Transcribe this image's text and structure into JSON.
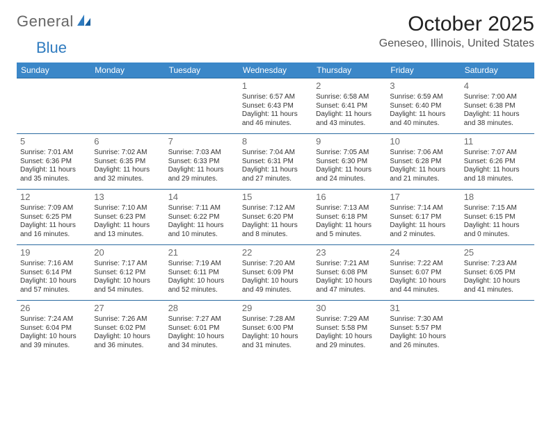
{
  "brand": {
    "general": "General",
    "blue": "Blue"
  },
  "title": "October 2025",
  "location": "Geneseo, Illinois, United States",
  "weekdays": [
    "Sunday",
    "Monday",
    "Tuesday",
    "Wednesday",
    "Thursday",
    "Friday",
    "Saturday"
  ],
  "colors": {
    "header_bg": "#3b87c8",
    "header_text": "#ffffff",
    "border": "#2a6aa0",
    "daynum": "#6b6b6b",
    "body_text": "#333333",
    "title_text": "#222222",
    "location_text": "#555555"
  },
  "typography": {
    "title_fontsize": 30,
    "location_fontsize": 16,
    "weekday_fontsize": 12,
    "daynum_fontsize": 13,
    "cell_fontsize": 10
  },
  "layout": {
    "columns": 7,
    "rows": 5,
    "first_weekday_index": 3,
    "days_in_month": 31
  },
  "days": [
    {
      "n": 1,
      "sunrise": "6:57 AM",
      "sunset": "6:43 PM",
      "daylight": "11 hours and 46 minutes."
    },
    {
      "n": 2,
      "sunrise": "6:58 AM",
      "sunset": "6:41 PM",
      "daylight": "11 hours and 43 minutes."
    },
    {
      "n": 3,
      "sunrise": "6:59 AM",
      "sunset": "6:40 PM",
      "daylight": "11 hours and 40 minutes."
    },
    {
      "n": 4,
      "sunrise": "7:00 AM",
      "sunset": "6:38 PM",
      "daylight": "11 hours and 38 minutes."
    },
    {
      "n": 5,
      "sunrise": "7:01 AM",
      "sunset": "6:36 PM",
      "daylight": "11 hours and 35 minutes."
    },
    {
      "n": 6,
      "sunrise": "7:02 AM",
      "sunset": "6:35 PM",
      "daylight": "11 hours and 32 minutes."
    },
    {
      "n": 7,
      "sunrise": "7:03 AM",
      "sunset": "6:33 PM",
      "daylight": "11 hours and 29 minutes."
    },
    {
      "n": 8,
      "sunrise": "7:04 AM",
      "sunset": "6:31 PM",
      "daylight": "11 hours and 27 minutes."
    },
    {
      "n": 9,
      "sunrise": "7:05 AM",
      "sunset": "6:30 PM",
      "daylight": "11 hours and 24 minutes."
    },
    {
      "n": 10,
      "sunrise": "7:06 AM",
      "sunset": "6:28 PM",
      "daylight": "11 hours and 21 minutes."
    },
    {
      "n": 11,
      "sunrise": "7:07 AM",
      "sunset": "6:26 PM",
      "daylight": "11 hours and 18 minutes."
    },
    {
      "n": 12,
      "sunrise": "7:09 AM",
      "sunset": "6:25 PM",
      "daylight": "11 hours and 16 minutes."
    },
    {
      "n": 13,
      "sunrise": "7:10 AM",
      "sunset": "6:23 PM",
      "daylight": "11 hours and 13 minutes."
    },
    {
      "n": 14,
      "sunrise": "7:11 AM",
      "sunset": "6:22 PM",
      "daylight": "11 hours and 10 minutes."
    },
    {
      "n": 15,
      "sunrise": "7:12 AM",
      "sunset": "6:20 PM",
      "daylight": "11 hours and 8 minutes."
    },
    {
      "n": 16,
      "sunrise": "7:13 AM",
      "sunset": "6:18 PM",
      "daylight": "11 hours and 5 minutes."
    },
    {
      "n": 17,
      "sunrise": "7:14 AM",
      "sunset": "6:17 PM",
      "daylight": "11 hours and 2 minutes."
    },
    {
      "n": 18,
      "sunrise": "7:15 AM",
      "sunset": "6:15 PM",
      "daylight": "11 hours and 0 minutes."
    },
    {
      "n": 19,
      "sunrise": "7:16 AM",
      "sunset": "6:14 PM",
      "daylight": "10 hours and 57 minutes."
    },
    {
      "n": 20,
      "sunrise": "7:17 AM",
      "sunset": "6:12 PM",
      "daylight": "10 hours and 54 minutes."
    },
    {
      "n": 21,
      "sunrise": "7:19 AM",
      "sunset": "6:11 PM",
      "daylight": "10 hours and 52 minutes."
    },
    {
      "n": 22,
      "sunrise": "7:20 AM",
      "sunset": "6:09 PM",
      "daylight": "10 hours and 49 minutes."
    },
    {
      "n": 23,
      "sunrise": "7:21 AM",
      "sunset": "6:08 PM",
      "daylight": "10 hours and 47 minutes."
    },
    {
      "n": 24,
      "sunrise": "7:22 AM",
      "sunset": "6:07 PM",
      "daylight": "10 hours and 44 minutes."
    },
    {
      "n": 25,
      "sunrise": "7:23 AM",
      "sunset": "6:05 PM",
      "daylight": "10 hours and 41 minutes."
    },
    {
      "n": 26,
      "sunrise": "7:24 AM",
      "sunset": "6:04 PM",
      "daylight": "10 hours and 39 minutes."
    },
    {
      "n": 27,
      "sunrise": "7:26 AM",
      "sunset": "6:02 PM",
      "daylight": "10 hours and 36 minutes."
    },
    {
      "n": 28,
      "sunrise": "7:27 AM",
      "sunset": "6:01 PM",
      "daylight": "10 hours and 34 minutes."
    },
    {
      "n": 29,
      "sunrise": "7:28 AM",
      "sunset": "6:00 PM",
      "daylight": "10 hours and 31 minutes."
    },
    {
      "n": 30,
      "sunrise": "7:29 AM",
      "sunset": "5:58 PM",
      "daylight": "10 hours and 29 minutes."
    },
    {
      "n": 31,
      "sunrise": "7:30 AM",
      "sunset": "5:57 PM",
      "daylight": "10 hours and 26 minutes."
    }
  ],
  "labels": {
    "sunrise": "Sunrise:",
    "sunset": "Sunset:",
    "daylight": "Daylight:"
  }
}
